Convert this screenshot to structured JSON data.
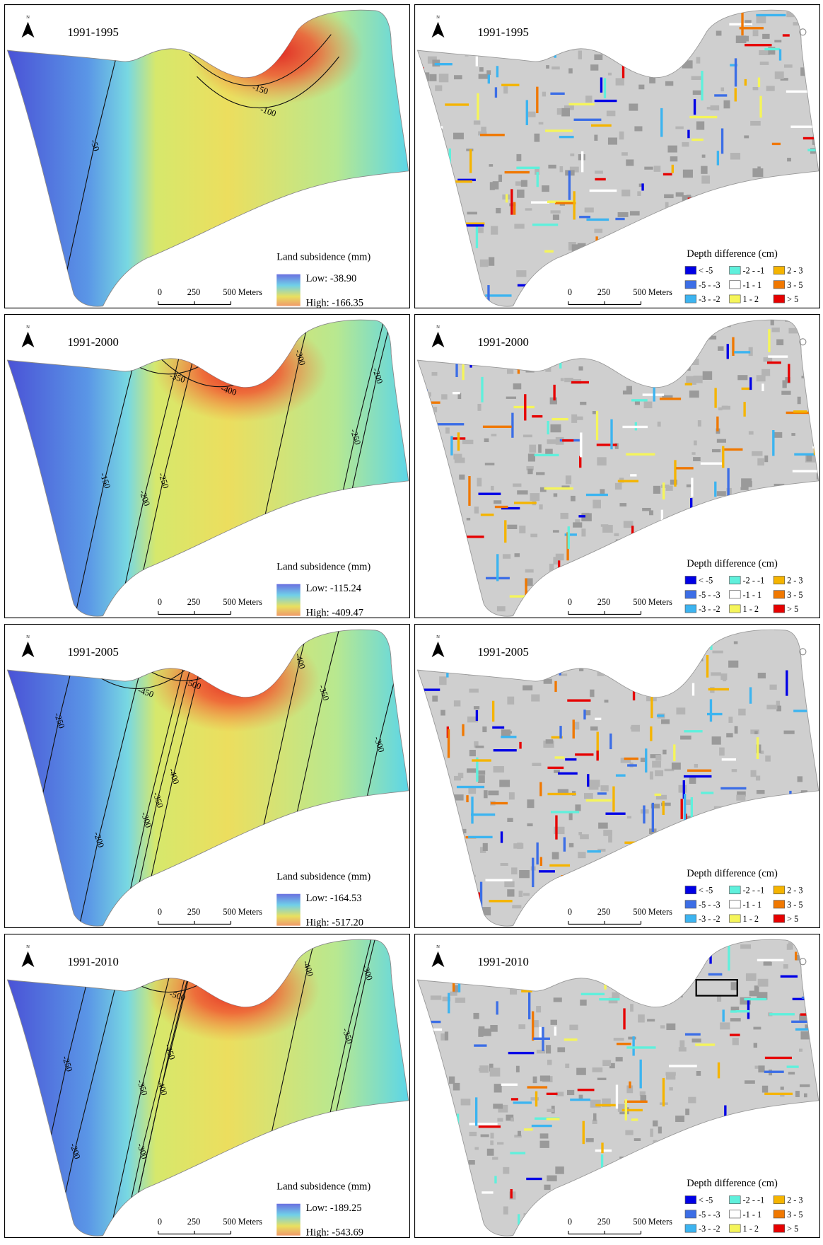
{
  "north_label": "N",
  "scale_bar": [
    "0",
    "250",
    "500 Meters"
  ],
  "subsidence_legend_title": "Land subsidence (mm)",
  "difference_legend_title": "Depth difference (cm)",
  "difference_classes": [
    {
      "label": "< -5",
      "color": "#0000e6"
    },
    {
      "label": "-2 - -1",
      "color": "#5ff0dc"
    },
    {
      "label": "2 - 3",
      "color": "#f5b400"
    },
    {
      "label": "-5 - -3",
      "color": "#3c6ee6"
    },
    {
      "label": "-1 - 1",
      "color": "#ffffff"
    },
    {
      "label": "3 - 5",
      "color": "#f07800"
    },
    {
      "label": "-3 - -2",
      "color": "#3cb4f0"
    },
    {
      "label": "1 - 2",
      "color": "#f5f55a"
    },
    {
      "label": "> 5",
      "color": "#e60000"
    }
  ],
  "panels": [
    {
      "period": "1991-1995",
      "low_label": "Low: -38.90",
      "high_label": "High: -166.35",
      "contour_labels": [
        "-150",
        "-100",
        "-50"
      ]
    },
    {
      "period": "1991-2000",
      "low_label": "Low: -115.24",
      "high_label": "High: -409.47",
      "contour_labels": [
        "-350",
        "-400",
        "-300",
        "-200",
        "-250",
        "-150",
        "-200",
        "-250"
      ]
    },
    {
      "period": "1991-2005",
      "low_label": "Low: -164.53",
      "high_label": "High: -517.20",
      "contour_labels": [
        "-450",
        "-500",
        "-400",
        "-350",
        "-300",
        "-250",
        "-400",
        "-350",
        "-300",
        "-200"
      ]
    },
    {
      "period": "1991-2010",
      "low_label": "Low: -189.25",
      "high_label": "High: -543.69",
      "contour_labels": [
        "-500",
        "-400",
        "-300",
        "-350",
        "-450",
        "-250",
        "-400",
        "-350",
        "-300",
        "-200"
      ]
    }
  ]
}
